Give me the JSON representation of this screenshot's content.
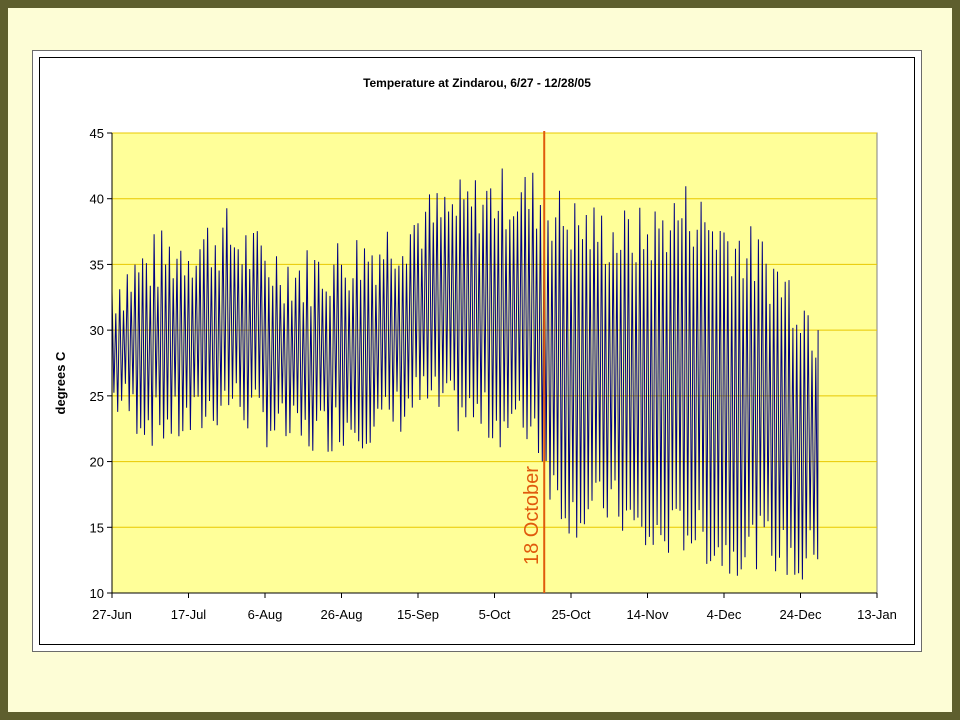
{
  "chart_data": {
    "type": "line",
    "title": "Temperature at Zindarou, 6/27 - 12/28/05",
    "ylabel": "degrees C",
    "xlabel": "",
    "ylim": [
      10,
      45
    ],
    "y_ticks": [
      10,
      15,
      20,
      25,
      30,
      35,
      40,
      45
    ],
    "x_range_days": [
      0,
      200
    ],
    "x_ticks": [
      {
        "day": 0,
        "label": "27-Jun"
      },
      {
        "day": 20,
        "label": "17-Jul"
      },
      {
        "day": 40,
        "label": "6-Aug"
      },
      {
        "day": 60,
        "label": "26-Aug"
      },
      {
        "day": 80,
        "label": "15-Sep"
      },
      {
        "day": 100,
        "label": "5-Oct"
      },
      {
        "day": 120,
        "label": "25-Oct"
      },
      {
        "day": 140,
        "label": "14-Nov"
      },
      {
        "day": 160,
        "label": "4-Dec"
      },
      {
        "day": 180,
        "label": "24-Dec"
      },
      {
        "day": 200,
        "label": "13-Jan"
      }
    ],
    "grid": true,
    "plot_background": "#ffff99",
    "gridline_color": "#e8c800",
    "series": [
      {
        "color": "#000080",
        "daily_range": [
          {
            "date": "27-Jun",
            "min": 25,
            "max": 33
          },
          {
            "date": "7-Jul",
            "min": 23,
            "max": 35
          },
          {
            "date": "17-Jul",
            "min": 23,
            "max": 36
          },
          {
            "date": "27-Jul",
            "min": 25,
            "max": 37
          },
          {
            "date": "6-Aug",
            "min": 23,
            "max": 35
          },
          {
            "date": "16-Aug",
            "min": 22,
            "max": 34
          },
          {
            "date": "26-Aug",
            "min": 23,
            "max": 35
          },
          {
            "date": "5-Sep",
            "min": 23,
            "max": 36
          },
          {
            "date": "15-Sep",
            "min": 25,
            "max": 38
          },
          {
            "date": "25-Sep",
            "min": 24,
            "max": 39
          },
          {
            "date": "5-Oct",
            "min": 23,
            "max": 40
          },
          {
            "date": "15-Oct",
            "min": 23,
            "max": 40
          },
          {
            "date": "20-Oct",
            "min": 18,
            "max": 39
          },
          {
            "date": "25-Oct",
            "min": 16,
            "max": 38
          },
          {
            "date": "4-Nov",
            "min": 17,
            "max": 37
          },
          {
            "date": "14-Nov",
            "min": 14,
            "max": 37
          },
          {
            "date": "24-Nov",
            "min": 15,
            "max": 39
          },
          {
            "date": "4-Dec",
            "min": 13,
            "max": 37
          },
          {
            "date": "14-Dec",
            "min": 14,
            "max": 35
          },
          {
            "date": "24-Dec",
            "min": 12,
            "max": 32
          },
          {
            "date": "28-Dec",
            "min": 14,
            "max": 30
          }
        ]
      }
    ],
    "annotation": {
      "label": "18 October",
      "day": 113,
      "color": "#e05a0c"
    }
  }
}
